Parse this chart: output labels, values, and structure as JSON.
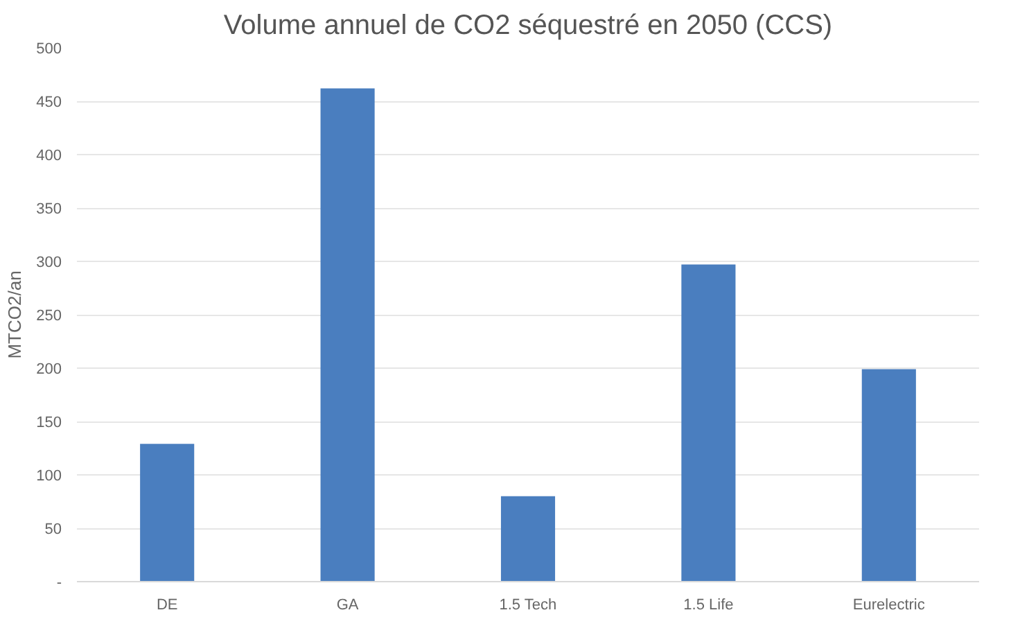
{
  "chart_data": {
    "type": "bar",
    "title": "Volume annuel de CO2 séquestré en 2050 (CCS)",
    "ylabel": "MTCO2/an",
    "categories": [
      "DE",
      "GA",
      "1.5 Tech",
      "1.5 Life",
      "Eurelectric"
    ],
    "values": [
      129,
      462,
      80,
      297,
      199
    ],
    "color": "#4a7ebf",
    "ylim": [
      0,
      500
    ],
    "yticks": [
      {
        "value": 0,
        "label": "-"
      },
      50,
      100,
      150,
      200,
      250,
      300,
      350,
      400,
      450,
      500
    ],
    "grid": "y"
  }
}
